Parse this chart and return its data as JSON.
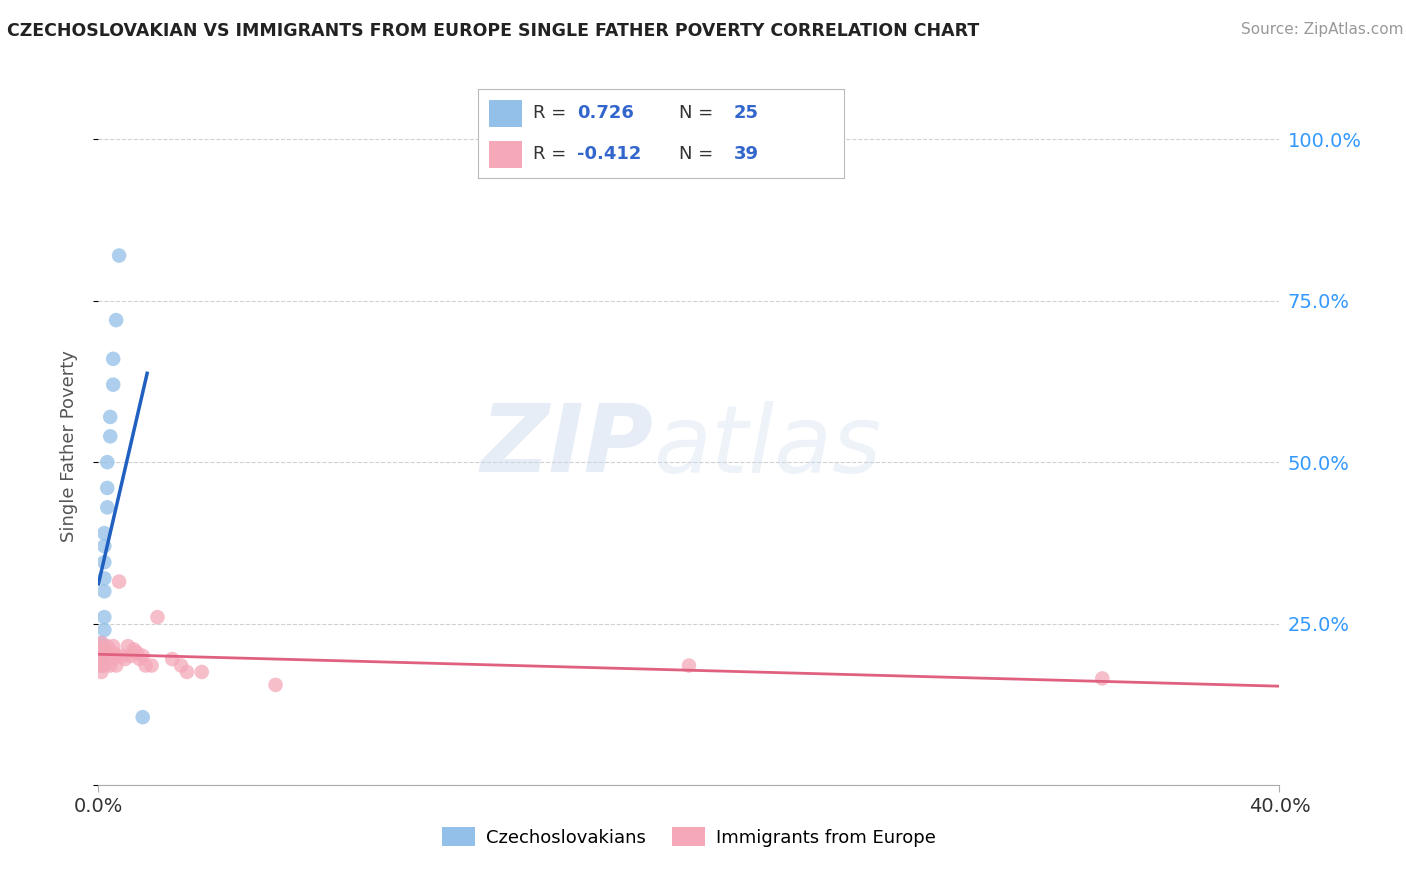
{
  "title": "CZECHOSLOVAKIAN VS IMMIGRANTS FROM EUROPE SINGLE FATHER POVERTY CORRELATION CHART",
  "source": "Source: ZipAtlas.com",
  "ylabel": "Single Father Poverty",
  "legend1_label": "Czechoslovakians",
  "legend2_label": "Immigrants from Europe",
  "R1": 0.726,
  "N1": 25,
  "R2": -0.412,
  "N2": 39,
  "blue_color": "#92C0E8",
  "pink_color": "#F4A8B8",
  "blue_line_color": "#2060C0",
  "pink_line_color": "#E06080",
  "watermark_zip": "ZIP",
  "watermark_atlas": "atlas",
  "blue_dots": [
    [
      0.0,
      0.205
    ],
    [
      0.0,
      0.195
    ],
    [
      0.001,
      0.215
    ],
    [
      0.001,
      0.2
    ],
    [
      0.001,
      0.185
    ],
    [
      0.001,
      0.19
    ],
    [
      0.001,
      0.21
    ],
    [
      0.001,
      0.22
    ],
    [
      0.002,
      0.24
    ],
    [
      0.002,
      0.26
    ],
    [
      0.002,
      0.3
    ],
    [
      0.002,
      0.32
    ],
    [
      0.002,
      0.345
    ],
    [
      0.002,
      0.37
    ],
    [
      0.002,
      0.39
    ],
    [
      0.003,
      0.43
    ],
    [
      0.003,
      0.46
    ],
    [
      0.003,
      0.5
    ],
    [
      0.004,
      0.54
    ],
    [
      0.004,
      0.57
    ],
    [
      0.005,
      0.62
    ],
    [
      0.005,
      0.66
    ],
    [
      0.006,
      0.72
    ],
    [
      0.007,
      0.82
    ],
    [
      0.015,
      0.105
    ]
  ],
  "pink_dots": [
    [
      0.0,
      0.215
    ],
    [
      0.001,
      0.205
    ],
    [
      0.001,
      0.195
    ],
    [
      0.001,
      0.185
    ],
    [
      0.001,
      0.175
    ],
    [
      0.001,
      0.22
    ],
    [
      0.002,
      0.21
    ],
    [
      0.002,
      0.195
    ],
    [
      0.002,
      0.185
    ],
    [
      0.003,
      0.205
    ],
    [
      0.003,
      0.195
    ],
    [
      0.003,
      0.215
    ],
    [
      0.004,
      0.2
    ],
    [
      0.004,
      0.185
    ],
    [
      0.004,
      0.195
    ],
    [
      0.005,
      0.205
    ],
    [
      0.005,
      0.195
    ],
    [
      0.005,
      0.215
    ],
    [
      0.006,
      0.2
    ],
    [
      0.006,
      0.185
    ],
    [
      0.007,
      0.315
    ],
    [
      0.008,
      0.2
    ],
    [
      0.009,
      0.195
    ],
    [
      0.01,
      0.215
    ],
    [
      0.011,
      0.2
    ],
    [
      0.012,
      0.21
    ],
    [
      0.013,
      0.205
    ],
    [
      0.014,
      0.195
    ],
    [
      0.015,
      0.2
    ],
    [
      0.016,
      0.185
    ],
    [
      0.018,
      0.185
    ],
    [
      0.02,
      0.26
    ],
    [
      0.025,
      0.195
    ],
    [
      0.028,
      0.185
    ],
    [
      0.03,
      0.175
    ],
    [
      0.035,
      0.175
    ],
    [
      0.06,
      0.155
    ],
    [
      0.2,
      0.185
    ],
    [
      0.34,
      0.165
    ]
  ],
  "xlim": [
    0.0,
    0.4
  ],
  "ylim": [
    0.0,
    1.05
  ],
  "x_tick_positions": [
    0.0,
    0.4
  ],
  "x_tick_labels": [
    "0.0%",
    "40.0%"
  ],
  "y_tick_positions": [
    0.0,
    0.25,
    0.5,
    0.75,
    1.0
  ],
  "y_tick_labels_right": [
    "",
    "25.0%",
    "50.0%",
    "75.0%",
    "100.0%"
  ],
  "background_color": "#FFFFFF"
}
